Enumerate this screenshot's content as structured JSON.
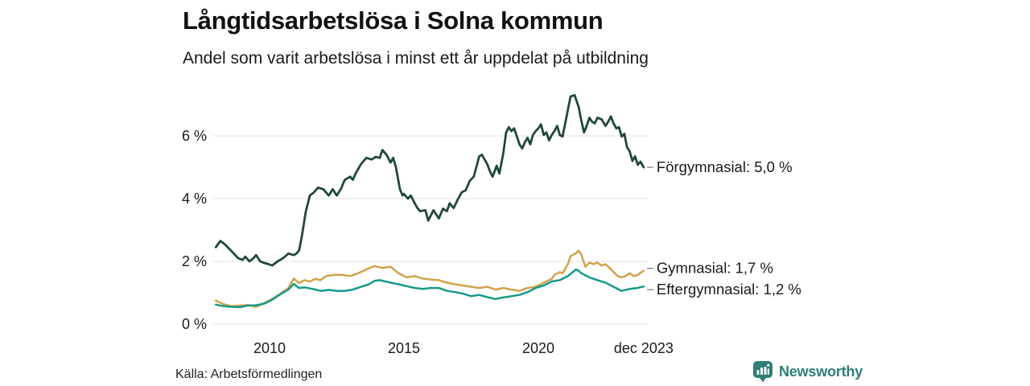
{
  "header": {
    "title": "Långtidsarbetslösa i Solna kommun",
    "subtitle": "Andel som varit arbetslösa i minst ett år uppdelat på utbildning"
  },
  "footer": {
    "source": "Källa: Arbetsförmedlingen",
    "brand": {
      "name": "Newsworthy",
      "icon": "bar-chart-speech-bubble-icon",
      "color": "#2f7e75"
    }
  },
  "chart_data": {
    "type": "line",
    "title": "Långtidsarbetslösa i Solna kommun",
    "subtitle": "Andel som varit arbetslösa i minst ett år uppdelat på utbildning",
    "unit": "%",
    "grid": true,
    "legend_position": "right-end-labels",
    "x_axis": {
      "range": [
        2008.0,
        2023.92
      ],
      "ticks": [
        {
          "label": "2010",
          "year": 2010
        },
        {
          "label": "2015",
          "year": 2015
        },
        {
          "label": "2020",
          "year": 2020
        },
        {
          "label": "dec 2023",
          "year": 2023.92
        }
      ]
    },
    "y_axis": {
      "range": [
        0,
        7.5
      ],
      "ticks": [
        {
          "label": "6 %",
          "value": 6
        },
        {
          "label": "4 %",
          "value": 4
        },
        {
          "label": "2 %",
          "value": 2
        },
        {
          "label": "0 %",
          "value": 0
        }
      ]
    },
    "grid_color": "#e2e2e2",
    "series": [
      {
        "name": "Förgymnasial",
        "end_label": "Förgymnasial: 5,0 %",
        "end_value": 5.0,
        "color": "#20483a",
        "points": [
          [
            2008.0,
            2.45
          ],
          [
            2008.08,
            2.55
          ],
          [
            2008.17,
            2.65
          ],
          [
            2008.33,
            2.55
          ],
          [
            2008.5,
            2.4
          ],
          [
            2008.67,
            2.25
          ],
          [
            2008.83,
            2.1
          ],
          [
            2009.0,
            2.05
          ],
          [
            2009.1,
            2.15
          ],
          [
            2009.25,
            2.0
          ],
          [
            2009.4,
            2.1
          ],
          [
            2009.5,
            2.2
          ],
          [
            2009.65,
            2.0
          ],
          [
            2009.8,
            1.95
          ],
          [
            2010.0,
            1.9
          ],
          [
            2010.1,
            1.87
          ],
          [
            2010.3,
            2.0
          ],
          [
            2010.5,
            2.1
          ],
          [
            2010.7,
            2.25
          ],
          [
            2010.9,
            2.2
          ],
          [
            2011.0,
            2.25
          ],
          [
            2011.1,
            2.35
          ],
          [
            2011.2,
            2.8
          ],
          [
            2011.35,
            3.6
          ],
          [
            2011.5,
            4.1
          ],
          [
            2011.65,
            4.2
          ],
          [
            2011.8,
            4.35
          ],
          [
            2012.0,
            4.3
          ],
          [
            2012.2,
            4.1
          ],
          [
            2012.35,
            4.3
          ],
          [
            2012.5,
            4.1
          ],
          [
            2012.65,
            4.3
          ],
          [
            2012.8,
            4.6
          ],
          [
            2013.0,
            4.7
          ],
          [
            2013.1,
            4.6
          ],
          [
            2013.2,
            4.8
          ],
          [
            2013.4,
            5.1
          ],
          [
            2013.6,
            5.3
          ],
          [
            2013.8,
            5.25
          ],
          [
            2013.95,
            5.33
          ],
          [
            2014.1,
            5.3
          ],
          [
            2014.2,
            5.55
          ],
          [
            2014.35,
            5.4
          ],
          [
            2014.5,
            5.15
          ],
          [
            2014.6,
            5.3
          ],
          [
            2014.7,
            5.0
          ],
          [
            2014.85,
            4.3
          ],
          [
            2014.95,
            4.1
          ],
          [
            2015.0,
            4.15
          ],
          [
            2015.15,
            4.0
          ],
          [
            2015.25,
            4.1
          ],
          [
            2015.4,
            3.85
          ],
          [
            2015.5,
            3.7
          ],
          [
            2015.6,
            3.6
          ],
          [
            2015.8,
            3.63
          ],
          [
            2015.9,
            3.3
          ],
          [
            2016.05,
            3.55
          ],
          [
            2016.1,
            3.63
          ],
          [
            2016.3,
            3.37
          ],
          [
            2016.45,
            3.68
          ],
          [
            2016.6,
            3.6
          ],
          [
            2016.7,
            3.85
          ],
          [
            2016.85,
            3.7
          ],
          [
            2017.0,
            3.97
          ],
          [
            2017.15,
            4.2
          ],
          [
            2017.3,
            4.27
          ],
          [
            2017.45,
            4.57
          ],
          [
            2017.6,
            4.7
          ],
          [
            2017.8,
            5.35
          ],
          [
            2017.9,
            5.4
          ],
          [
            2018.1,
            5.1
          ],
          [
            2018.2,
            4.87
          ],
          [
            2018.3,
            4.7
          ],
          [
            2018.45,
            5.05
          ],
          [
            2018.55,
            4.8
          ],
          [
            2018.7,
            5.47
          ],
          [
            2018.8,
            6.1
          ],
          [
            2018.9,
            6.28
          ],
          [
            2019.0,
            6.15
          ],
          [
            2019.1,
            6.24
          ],
          [
            2019.3,
            5.73
          ],
          [
            2019.4,
            5.6
          ],
          [
            2019.5,
            5.8
          ],
          [
            2019.6,
            5.94
          ],
          [
            2019.7,
            5.73
          ],
          [
            2019.8,
            6.03
          ],
          [
            2019.9,
            6.15
          ],
          [
            2020.0,
            6.24
          ],
          [
            2020.1,
            6.37
          ],
          [
            2020.2,
            6.03
          ],
          [
            2020.3,
            6.11
          ],
          [
            2020.4,
            5.86
          ],
          [
            2020.5,
            6.03
          ],
          [
            2020.6,
            6.15
          ],
          [
            2020.7,
            6.32
          ],
          [
            2020.8,
            6.03
          ],
          [
            2020.9,
            5.98
          ],
          [
            2021.0,
            6.4
          ],
          [
            2021.1,
            6.83
          ],
          [
            2021.2,
            7.26
          ],
          [
            2021.35,
            7.3
          ],
          [
            2021.5,
            6.92
          ],
          [
            2021.6,
            6.49
          ],
          [
            2021.7,
            6.11
          ],
          [
            2021.8,
            6.32
          ],
          [
            2021.9,
            6.58
          ],
          [
            2022.0,
            6.45
          ],
          [
            2022.1,
            6.4
          ],
          [
            2022.2,
            6.58
          ],
          [
            2022.35,
            6.53
          ],
          [
            2022.5,
            6.32
          ],
          [
            2022.6,
            6.45
          ],
          [
            2022.7,
            6.62
          ],
          [
            2022.8,
            6.4
          ],
          [
            2022.9,
            6.24
          ],
          [
            2023.0,
            6.28
          ],
          [
            2023.1,
            5.98
          ],
          [
            2023.2,
            6.07
          ],
          [
            2023.3,
            5.64
          ],
          [
            2023.4,
            5.5
          ],
          [
            2023.5,
            5.2
          ],
          [
            2023.6,
            5.35
          ],
          [
            2023.7,
            5.08
          ],
          [
            2023.8,
            5.18
          ],
          [
            2023.92,
            5.0
          ]
        ]
      },
      {
        "name": "Gymnasial",
        "end_label": "Gymnasial: 1,7 %",
        "end_value": 1.7,
        "color": "#d2a14b",
        "points": [
          [
            2008.0,
            0.75
          ],
          [
            2008.3,
            0.63
          ],
          [
            2008.6,
            0.57
          ],
          [
            2008.9,
            0.59
          ],
          [
            2009.2,
            0.61
          ],
          [
            2009.5,
            0.55
          ],
          [
            2009.8,
            0.67
          ],
          [
            2010.1,
            0.8
          ],
          [
            2010.4,
            0.97
          ],
          [
            2010.7,
            1.15
          ],
          [
            2010.9,
            1.45
          ],
          [
            2011.1,
            1.31
          ],
          [
            2011.3,
            1.4
          ],
          [
            2011.5,
            1.36
          ],
          [
            2011.7,
            1.44
          ],
          [
            2011.9,
            1.4
          ],
          [
            2012.1,
            1.53
          ],
          [
            2012.4,
            1.57
          ],
          [
            2012.7,
            1.57
          ],
          [
            2013.0,
            1.53
          ],
          [
            2013.3,
            1.62
          ],
          [
            2013.6,
            1.74
          ],
          [
            2013.75,
            1.8
          ],
          [
            2013.9,
            1.85
          ],
          [
            2014.2,
            1.79
          ],
          [
            2014.5,
            1.83
          ],
          [
            2014.8,
            1.62
          ],
          [
            2015.1,
            1.49
          ],
          [
            2015.4,
            1.53
          ],
          [
            2015.7,
            1.45
          ],
          [
            2016.0,
            1.42
          ],
          [
            2016.3,
            1.4
          ],
          [
            2016.6,
            1.32
          ],
          [
            2016.9,
            1.27
          ],
          [
            2017.2,
            1.23
          ],
          [
            2017.5,
            1.19
          ],
          [
            2017.8,
            1.15
          ],
          [
            2018.1,
            1.19
          ],
          [
            2018.4,
            1.1
          ],
          [
            2018.7,
            1.15
          ],
          [
            2019.0,
            1.1
          ],
          [
            2019.3,
            1.06
          ],
          [
            2019.6,
            1.15
          ],
          [
            2019.9,
            1.19
          ],
          [
            2020.2,
            1.32
          ],
          [
            2020.5,
            1.44
          ],
          [
            2020.6,
            1.57
          ],
          [
            2020.8,
            1.66
          ],
          [
            2020.9,
            1.62
          ],
          [
            2021.1,
            1.91
          ],
          [
            2021.2,
            2.17
          ],
          [
            2021.4,
            2.26
          ],
          [
            2021.5,
            2.34
          ],
          [
            2021.6,
            2.21
          ],
          [
            2021.75,
            1.83
          ],
          [
            2021.9,
            1.96
          ],
          [
            2022.05,
            1.91
          ],
          [
            2022.2,
            1.96
          ],
          [
            2022.35,
            1.87
          ],
          [
            2022.5,
            1.91
          ],
          [
            2022.65,
            1.79
          ],
          [
            2022.8,
            1.66
          ],
          [
            2022.95,
            1.53
          ],
          [
            2023.1,
            1.49
          ],
          [
            2023.25,
            1.53
          ],
          [
            2023.4,
            1.62
          ],
          [
            2023.55,
            1.53
          ],
          [
            2023.7,
            1.57
          ],
          [
            2023.92,
            1.7
          ]
        ]
      },
      {
        "name": "Eftergymnasial",
        "end_label": "Eftergymnasial: 1,2 %",
        "end_value": 1.2,
        "color": "#17998a",
        "points": [
          [
            2008.0,
            0.62
          ],
          [
            2008.3,
            0.57
          ],
          [
            2008.6,
            0.55
          ],
          [
            2008.9,
            0.54
          ],
          [
            2009.2,
            0.59
          ],
          [
            2009.5,
            0.6
          ],
          [
            2009.8,
            0.65
          ],
          [
            2010.1,
            0.78
          ],
          [
            2010.4,
            0.95
          ],
          [
            2010.7,
            1.1
          ],
          [
            2010.9,
            1.28
          ],
          [
            2011.1,
            1.15
          ],
          [
            2011.3,
            1.17
          ],
          [
            2011.6,
            1.12
          ],
          [
            2011.9,
            1.06
          ],
          [
            2012.2,
            1.09
          ],
          [
            2012.5,
            1.06
          ],
          [
            2012.8,
            1.06
          ],
          [
            2013.1,
            1.1
          ],
          [
            2013.4,
            1.19
          ],
          [
            2013.7,
            1.27
          ],
          [
            2013.9,
            1.38
          ],
          [
            2014.1,
            1.4
          ],
          [
            2014.5,
            1.32
          ],
          [
            2014.8,
            1.27
          ],
          [
            2015.1,
            1.21
          ],
          [
            2015.4,
            1.15
          ],
          [
            2015.7,
            1.12
          ],
          [
            2016.0,
            1.15
          ],
          [
            2016.3,
            1.15
          ],
          [
            2016.6,
            1.06
          ],
          [
            2016.9,
            1.02
          ],
          [
            2017.2,
            0.97
          ],
          [
            2017.5,
            0.89
          ],
          [
            2017.8,
            0.93
          ],
          [
            2018.1,
            0.86
          ],
          [
            2018.4,
            0.8
          ],
          [
            2018.7,
            0.85
          ],
          [
            2019.0,
            0.89
          ],
          [
            2019.3,
            0.93
          ],
          [
            2019.6,
            1.02
          ],
          [
            2019.9,
            1.15
          ],
          [
            2020.2,
            1.23
          ],
          [
            2020.5,
            1.36
          ],
          [
            2020.8,
            1.4
          ],
          [
            2021.1,
            1.53
          ],
          [
            2021.4,
            1.74
          ],
          [
            2021.5,
            1.7
          ],
          [
            2021.6,
            1.62
          ],
          [
            2021.9,
            1.49
          ],
          [
            2022.2,
            1.4
          ],
          [
            2022.5,
            1.32
          ],
          [
            2022.8,
            1.19
          ],
          [
            2023.1,
            1.06
          ],
          [
            2023.4,
            1.12
          ],
          [
            2023.7,
            1.15
          ],
          [
            2023.92,
            1.2
          ]
        ]
      }
    ]
  }
}
